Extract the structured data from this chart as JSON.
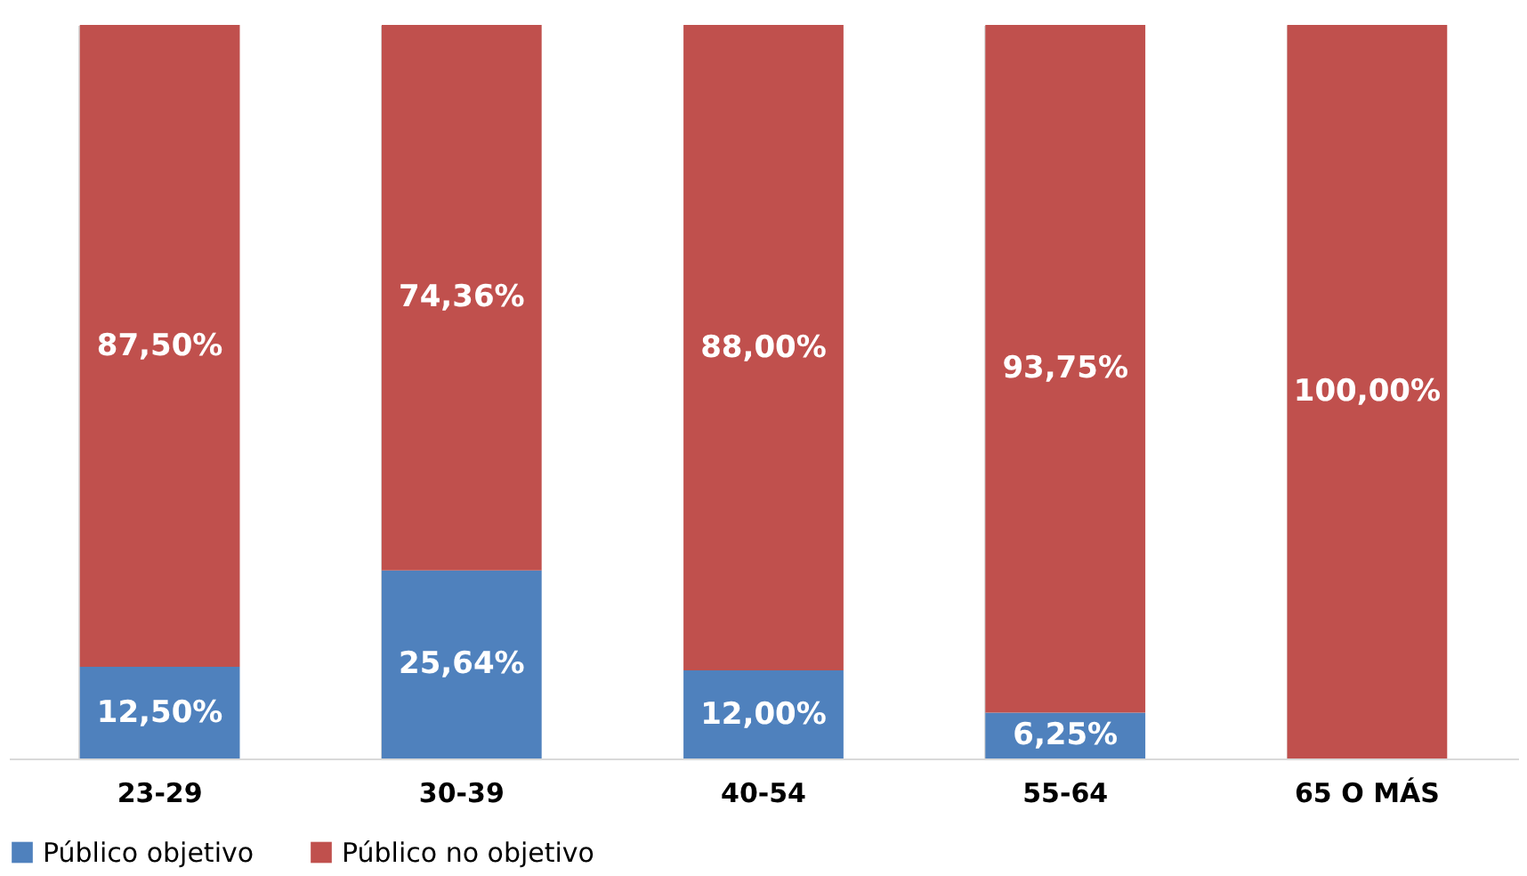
{
  "chart_data": {
    "type": "bar",
    "stacked": true,
    "categories": [
      "23-29",
      "30-39",
      "40-54",
      "55-64",
      "65 O MÁS"
    ],
    "series": [
      {
        "name": "Público objetivo",
        "color": "#4f81bd",
        "values": [
          12.5,
          25.64,
          12.0,
          6.25,
          0
        ],
        "value_labels": [
          "12,50%",
          "25,64%",
          "12,00%",
          "6,25%",
          null
        ]
      },
      {
        "name": "Público no objetivo",
        "color": "#c0504d",
        "values": [
          87.5,
          74.36,
          88.0,
          93.75,
          100.0
        ],
        "value_labels": [
          "87,50%",
          "74,36%",
          "88,00%",
          "93,75%",
          "100,00%"
        ]
      }
    ],
    "ylim": [
      0,
      100
    ],
    "grid": "x",
    "legend": "bottom",
    "tick_labels": "x"
  }
}
